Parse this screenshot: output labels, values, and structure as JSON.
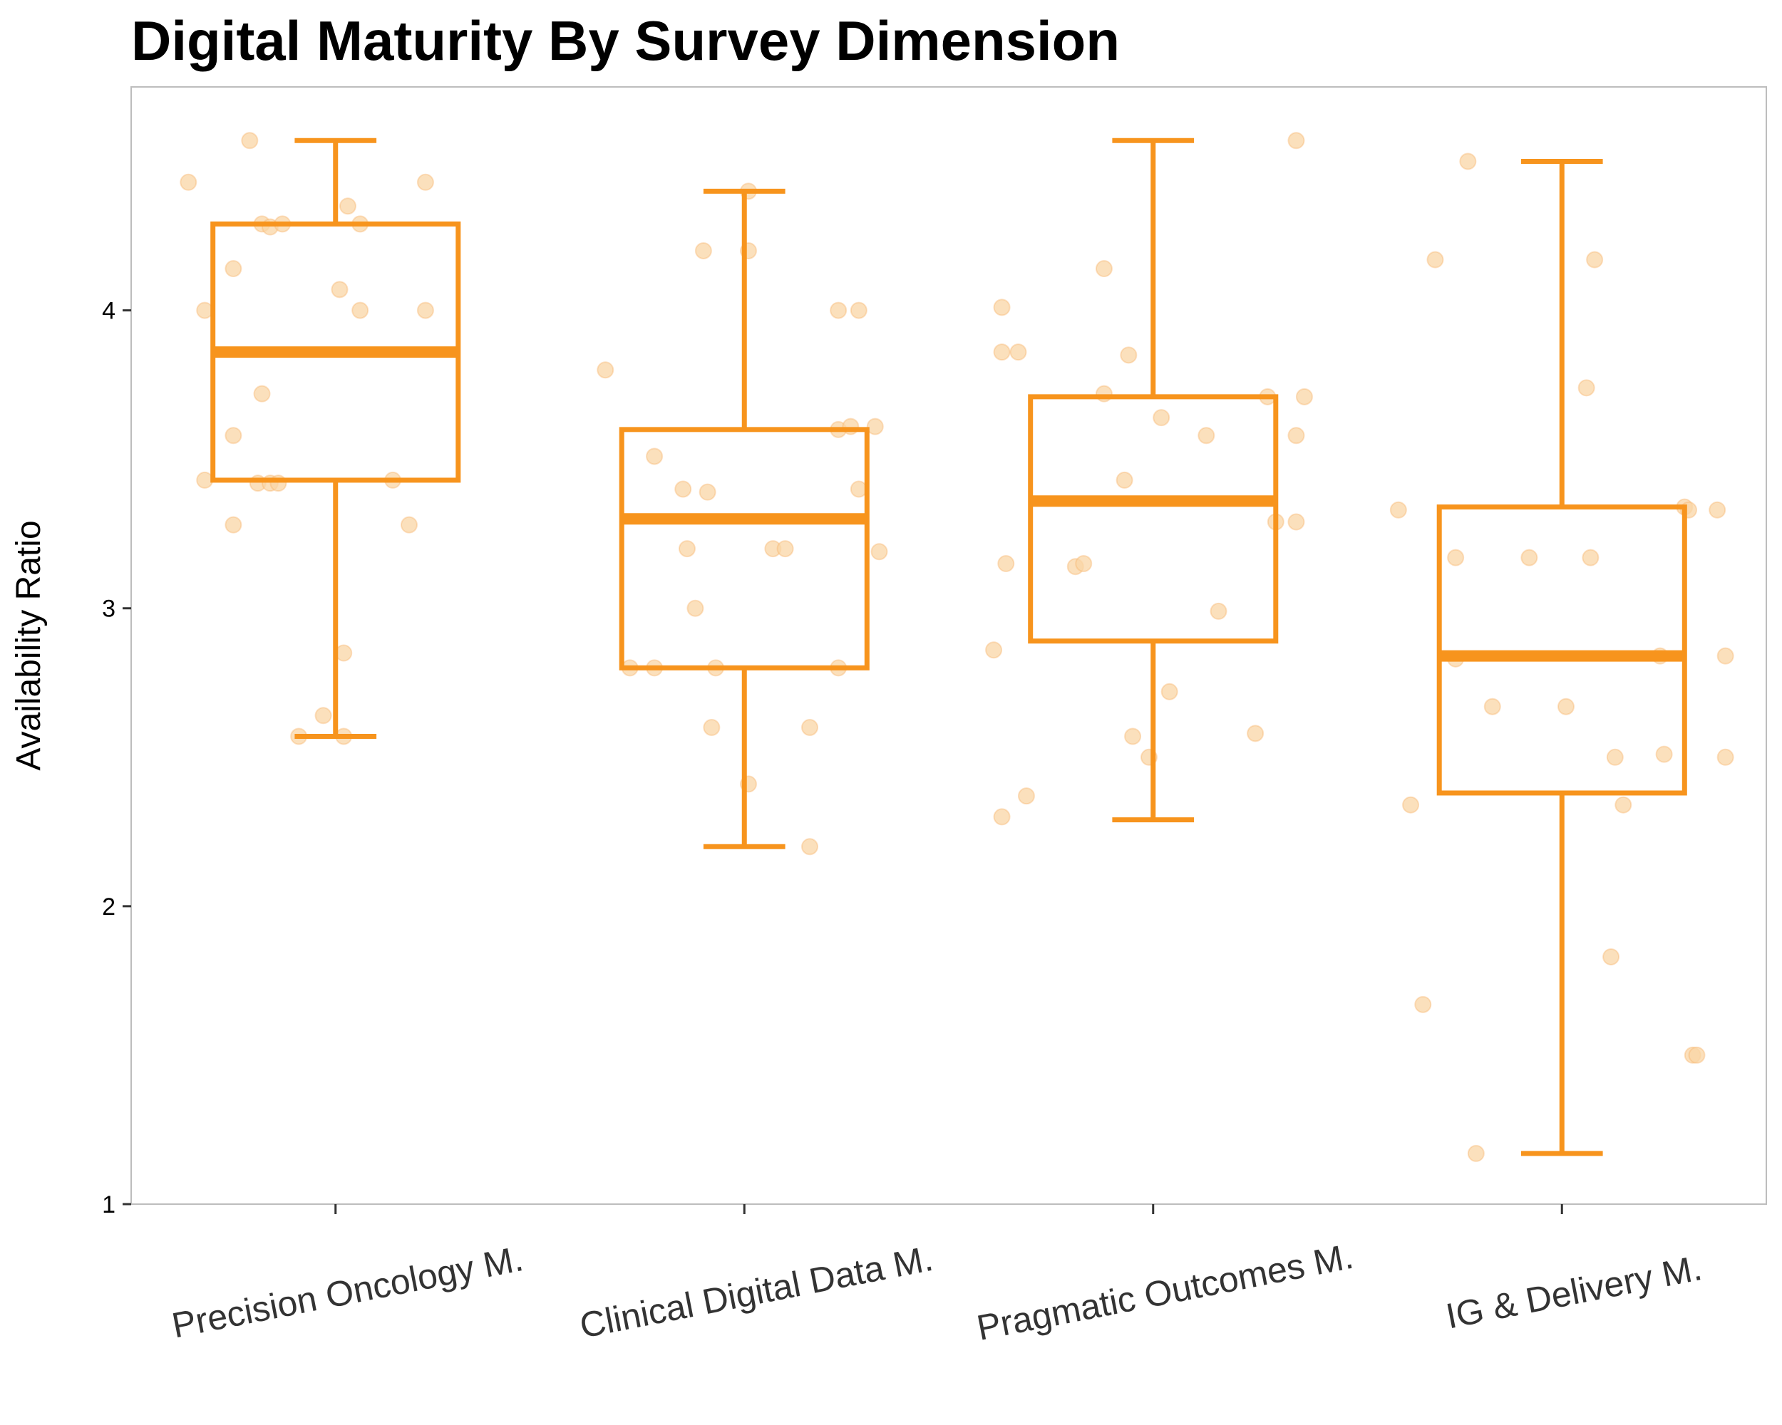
{
  "chart_data": {
    "type": "box",
    "title": "Digital Maturity By Survey Dimension",
    "ylabel": "Availability Ratio",
    "xlabel": "",
    "ylim": [
      1.0,
      4.75
    ],
    "yticks": [
      1,
      2,
      3,
      4
    ],
    "grid": false,
    "colors": {
      "box": "#F7941D",
      "points": "#FAD6A5"
    },
    "categories": [
      "Precision Oncology M.",
      "Clinical Digital Data M.",
      "Pragmatic Outcomes M.",
      "IG & Delivery M."
    ],
    "boxes": [
      {
        "category": "Precision Oncology M.",
        "min": 2.57,
        "q1": 3.43,
        "median": 3.86,
        "q3": 4.29,
        "max": 4.57
      },
      {
        "category": "Clinical Digital Data M.",
        "min": 2.2,
        "q1": 2.8,
        "median": 3.3,
        "q3": 3.6,
        "max": 4.4
      },
      {
        "category": "Pragmatic Outcomes M.",
        "min": 2.29,
        "q1": 2.89,
        "median": 3.36,
        "q3": 3.71,
        "max": 4.57
      },
      {
        "category": "IG & Delivery M.",
        "min": 1.17,
        "q1": 2.38,
        "median": 2.84,
        "q3": 3.34,
        "max": 4.5
      }
    ],
    "points": [
      {
        "category": "Precision Oncology M.",
        "values": [
          {
            "x": -0.36,
            "y": 4.43
          },
          {
            "x": -0.21,
            "y": 4.57
          },
          {
            "x": -0.18,
            "y": 4.29
          },
          {
            "x": -0.16,
            "y": 4.28
          },
          {
            "x": -0.13,
            "y": 4.29
          },
          {
            "x": -0.25,
            "y": 4.14
          },
          {
            "x": 0.03,
            "y": 4.35
          },
          {
            "x": 0.06,
            "y": 4.29
          },
          {
            "x": 0.22,
            "y": 4.43
          },
          {
            "x": -0.32,
            "y": 4.0
          },
          {
            "x": 0.01,
            "y": 4.07
          },
          {
            "x": 0.06,
            "y": 4.0
          },
          {
            "x": 0.22,
            "y": 4.0
          },
          {
            "x": -0.18,
            "y": 3.72
          },
          {
            "x": -0.25,
            "y": 3.58
          },
          {
            "x": -0.32,
            "y": 3.43
          },
          {
            "x": -0.19,
            "y": 3.42
          },
          {
            "x": -0.16,
            "y": 3.42
          },
          {
            "x": -0.14,
            "y": 3.42
          },
          {
            "x": 0.14,
            "y": 3.43
          },
          {
            "x": -0.25,
            "y": 3.28
          },
          {
            "x": 0.18,
            "y": 3.28
          },
          {
            "x": 0.02,
            "y": 2.85
          },
          {
            "x": -0.03,
            "y": 2.64
          },
          {
            "x": -0.09,
            "y": 2.57
          },
          {
            "x": 0.02,
            "y": 2.57
          }
        ]
      },
      {
        "category": "Clinical Digital Data M.",
        "values": [
          {
            "x": 0.01,
            "y": 4.4
          },
          {
            "x": -0.1,
            "y": 4.2
          },
          {
            "x": 0.01,
            "y": 4.2
          },
          {
            "x": 0.23,
            "y": 4.0
          },
          {
            "x": 0.28,
            "y": 4.0
          },
          {
            "x": -0.34,
            "y": 3.8
          },
          {
            "x": 0.23,
            "y": 3.6
          },
          {
            "x": 0.26,
            "y": 3.61
          },
          {
            "x": 0.32,
            "y": 3.61
          },
          {
            "x": -0.22,
            "y": 3.51
          },
          {
            "x": -0.15,
            "y": 3.4
          },
          {
            "x": -0.09,
            "y": 3.39
          },
          {
            "x": 0.28,
            "y": 3.4
          },
          {
            "x": -0.14,
            "y": 3.2
          },
          {
            "x": 0.07,
            "y": 3.2
          },
          {
            "x": 0.1,
            "y": 3.2
          },
          {
            "x": 0.33,
            "y": 3.19
          },
          {
            "x": -0.12,
            "y": 3.0
          },
          {
            "x": -0.28,
            "y": 2.8
          },
          {
            "x": -0.22,
            "y": 2.8
          },
          {
            "x": -0.07,
            "y": 2.8
          },
          {
            "x": 0.23,
            "y": 2.8
          },
          {
            "x": -0.08,
            "y": 2.6
          },
          {
            "x": 0.16,
            "y": 2.6
          },
          {
            "x": 0.01,
            "y": 2.41
          },
          {
            "x": 0.16,
            "y": 2.2
          }
        ]
      },
      {
        "category": "Pragmatic Outcomes M.",
        "values": [
          {
            "x": 0.35,
            "y": 4.57
          },
          {
            "x": -0.12,
            "y": 4.14
          },
          {
            "x": -0.37,
            "y": 4.01
          },
          {
            "x": -0.37,
            "y": 3.86
          },
          {
            "x": -0.33,
            "y": 3.86
          },
          {
            "x": -0.06,
            "y": 3.85
          },
          {
            "x": -0.12,
            "y": 3.72
          },
          {
            "x": 0.28,
            "y": 3.71
          },
          {
            "x": 0.37,
            "y": 3.71
          },
          {
            "x": 0.02,
            "y": 3.64
          },
          {
            "x": 0.13,
            "y": 3.58
          },
          {
            "x": 0.35,
            "y": 3.58
          },
          {
            "x": -0.07,
            "y": 3.43
          },
          {
            "x": 0.3,
            "y": 3.29
          },
          {
            "x": 0.35,
            "y": 3.29
          },
          {
            "x": -0.36,
            "y": 3.15
          },
          {
            "x": -0.19,
            "y": 3.14
          },
          {
            "x": -0.17,
            "y": 3.15
          },
          {
            "x": 0.16,
            "y": 2.99
          },
          {
            "x": -0.39,
            "y": 2.86
          },
          {
            "x": 0.04,
            "y": 2.72
          },
          {
            "x": 0.25,
            "y": 2.58
          },
          {
            "x": -0.05,
            "y": 2.57
          },
          {
            "x": -0.01,
            "y": 2.5
          },
          {
            "x": -0.31,
            "y": 2.37
          },
          {
            "x": -0.37,
            "y": 2.3
          }
        ]
      },
      {
        "category": "IG & Delivery M.",
        "values": [
          {
            "x": -0.23,
            "y": 4.5
          },
          {
            "x": -0.31,
            "y": 4.17
          },
          {
            "x": 0.08,
            "y": 4.17
          },
          {
            "x": 0.06,
            "y": 3.74
          },
          {
            "x": -0.4,
            "y": 3.33
          },
          {
            "x": 0.3,
            "y": 3.34
          },
          {
            "x": 0.31,
            "y": 3.33
          },
          {
            "x": 0.38,
            "y": 3.33
          },
          {
            "x": -0.26,
            "y": 3.17
          },
          {
            "x": -0.08,
            "y": 3.17
          },
          {
            "x": 0.07,
            "y": 3.17
          },
          {
            "x": -0.26,
            "y": 2.83
          },
          {
            "x": 0.24,
            "y": 2.84
          },
          {
            "x": 0.4,
            "y": 2.84
          },
          {
            "x": -0.17,
            "y": 2.67
          },
          {
            "x": 0.01,
            "y": 2.67
          },
          {
            "x": 0.13,
            "y": 2.5
          },
          {
            "x": 0.25,
            "y": 2.51
          },
          {
            "x": 0.4,
            "y": 2.5
          },
          {
            "x": -0.37,
            "y": 2.34
          },
          {
            "x": 0.15,
            "y": 2.34
          },
          {
            "x": 0.12,
            "y": 1.83
          },
          {
            "x": -0.34,
            "y": 1.67
          },
          {
            "x": 0.32,
            "y": 1.5
          },
          {
            "x": 0.33,
            "y": 1.5
          },
          {
            "x": -0.21,
            "y": 1.17
          }
        ]
      }
    ]
  }
}
